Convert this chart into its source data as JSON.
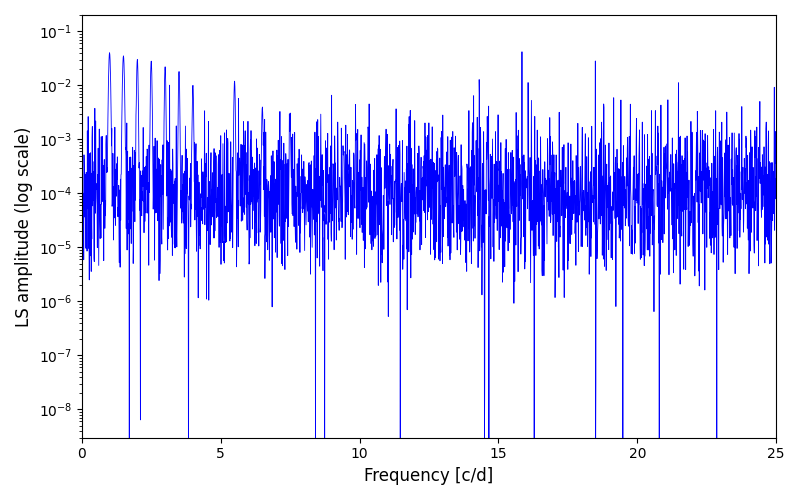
{
  "title": "",
  "xlabel": "Frequency [c/d]",
  "ylabel": "LS amplitude (log scale)",
  "line_color": "#0000ff",
  "xlim": [
    0,
    25
  ],
  "ylim": [
    3e-09,
    0.2
  ],
  "freq_max": 25.0,
  "n_points": 2500,
  "seed": 7,
  "background_color": "#ffffff",
  "figsize": [
    8.0,
    5.0
  ],
  "dpi": 100
}
